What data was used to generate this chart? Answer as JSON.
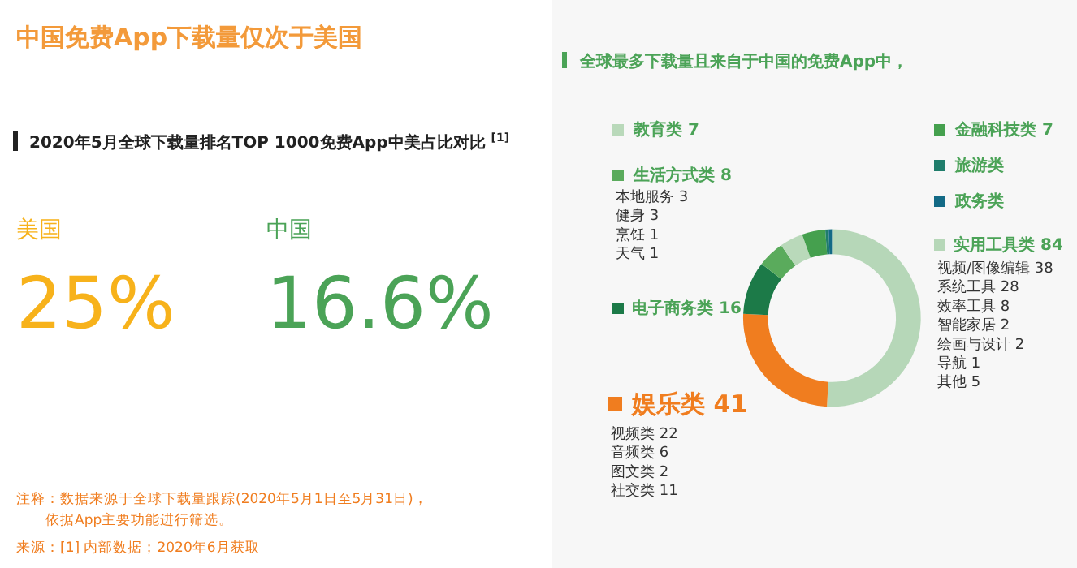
{
  "chart_data": [
    {
      "type": "other",
      "title": "中国免费App下载量仅次于美国",
      "subtitle": "2020年5月全球下载量排名TOP 1000免费App中美占比对比 $^{[1]}$",
      "categories": [
        "美国",
        "中国"
      ],
      "values": [
        25,
        16.6
      ],
      "value_labels": [
        "25%",
        "16.6%"
      ],
      "colors": [
        "#f7b21b",
        "#4ba357"
      ],
      "annotations": [
        "注释：数据来源于全球下载量跟踪(2020年5月1日至5月31日)，",
        "依据App主要功能进行筛选。",
        "来源：[1] 内部数据；2020年6月获取"
      ]
    },
    {
      "type": "donut",
      "title": "全球最多下载量且来自于中国的免费App中，",
      "categories": [
        "实用工具类",
        "娱乐类",
        "电子商务类",
        "生活方式类",
        "教育类",
        "金融科技类",
        "旅游类",
        "政务类"
      ],
      "values": [
        84,
        41,
        16,
        8,
        7,
        7,
        1,
        1
      ],
      "value_labels": [
        "84",
        "41",
        "16",
        "8",
        "7",
        "7",
        null,
        null
      ],
      "colors": [
        "#b6d7b8",
        "#f07d1f",
        "#1c7a48",
        "#5aab5c",
        "#b9d9ba",
        "#45a04e",
        "#1f7d6b",
        "#136a86"
      ],
      "legend": "right",
      "annotations": [
        "本地服务 3\n健身 3\n烹饪 1\n天气 1",
        "视频/图像编辑 38\n系统工具 28\n效率工具 8\n智能家居 2\n绘画与设计 2\n导航 1\n其他 5",
        "视频类 22\n音频类 6\n图文类 2\n社交类 11"
      ]
    }
  ]
}
